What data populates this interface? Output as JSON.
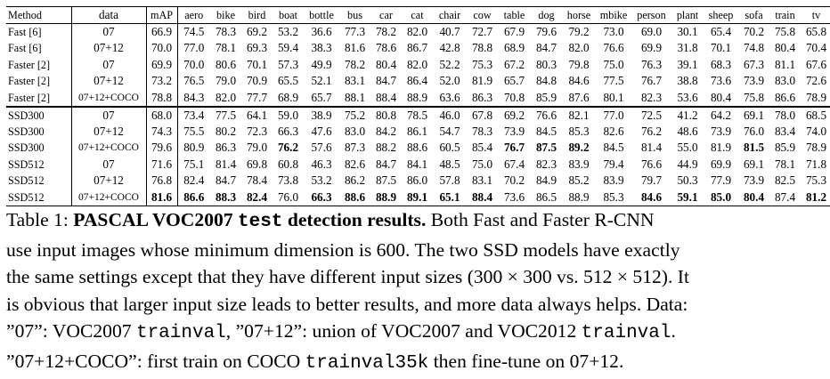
{
  "table": {
    "headers": [
      "Method",
      "data",
      "mAP",
      "aero",
      "bike",
      "bird",
      "boat",
      "bottle",
      "bus",
      "car",
      "cat",
      "chair",
      "cow",
      "table",
      "dog",
      "horse",
      "mbike",
      "person",
      "plant",
      "sheep",
      "sofa",
      "train",
      "tv"
    ],
    "rows": [
      {
        "method": "Fast [6]",
        "data": "07",
        "values": [
          "66.9",
          "74.5",
          "78.3",
          "69.2",
          "53.2",
          "36.6",
          "77.3",
          "78.2",
          "82.0",
          "40.7",
          "72.7",
          "67.9",
          "79.6",
          "79.2",
          "73.0",
          "69.0",
          "30.1",
          "65.4",
          "70.2",
          "75.8",
          "65.8"
        ],
        "bold": []
      },
      {
        "method": "Fast [6]",
        "data": "07+12",
        "values": [
          "70.0",
          "77.0",
          "78.1",
          "69.3",
          "59.4",
          "38.3",
          "81.6",
          "78.6",
          "86.7",
          "42.8",
          "78.8",
          "68.9",
          "84.7",
          "82.0",
          "76.6",
          "69.9",
          "31.8",
          "70.1",
          "74.8",
          "80.4",
          "70.4"
        ],
        "bold": []
      },
      {
        "method": "Faster [2]",
        "data": "07",
        "values": [
          "69.9",
          "70.0",
          "80.6",
          "70.1",
          "57.3",
          "49.9",
          "78.2",
          "80.4",
          "82.0",
          "52.2",
          "75.3",
          "67.2",
          "80.3",
          "79.8",
          "75.0",
          "76.3",
          "39.1",
          "68.3",
          "67.3",
          "81.1",
          "67.6"
        ],
        "bold": []
      },
      {
        "method": "Faster [2]",
        "data": "07+12",
        "values": [
          "73.2",
          "76.5",
          "79.0",
          "70.9",
          "65.5",
          "52.1",
          "83.1",
          "84.7",
          "86.4",
          "52.0",
          "81.9",
          "65.7",
          "84.8",
          "84.6",
          "77.5",
          "76.7",
          "38.8",
          "73.6",
          "73.9",
          "83.0",
          "72.6"
        ],
        "bold": []
      },
      {
        "method": "Faster [2]",
        "data": "07+12+COCO",
        "values": [
          "78.8",
          "84.3",
          "82.0",
          "77.7",
          "68.9",
          "65.7",
          "88.1",
          "88.4",
          "88.9",
          "63.6",
          "86.3",
          "70.8",
          "85.9",
          "87.6",
          "80.1",
          "82.3",
          "53.6",
          "80.4",
          "75.8",
          "86.6",
          "78.9"
        ],
        "bold": []
      },
      {
        "method": "SSD300",
        "data": "07",
        "values": [
          "68.0",
          "73.4",
          "77.5",
          "64.1",
          "59.0",
          "38.9",
          "75.2",
          "80.8",
          "78.5",
          "46.0",
          "67.8",
          "69.2",
          "76.6",
          "82.1",
          "77.0",
          "72.5",
          "41.2",
          "64.2",
          "69.1",
          "78.0",
          "68.5"
        ],
        "bold": [],
        "group_start": true
      },
      {
        "method": "SSD300",
        "data": "07+12",
        "values": [
          "74.3",
          "75.5",
          "80.2",
          "72.3",
          "66.3",
          "47.6",
          "83.0",
          "84.2",
          "86.1",
          "54.7",
          "78.3",
          "73.9",
          "84.5",
          "85.3",
          "82.6",
          "76.2",
          "48.6",
          "73.9",
          "76.0",
          "83.4",
          "74.0"
        ],
        "bold": []
      },
      {
        "method": "SSD300",
        "data": "07+12+COCO",
        "values": [
          "79.6",
          "80.9",
          "86.3",
          "79.0",
          "76.2",
          "57.6",
          "87.3",
          "88.2",
          "88.6",
          "60.5",
          "85.4",
          "76.7",
          "87.5",
          "89.2",
          "84.5",
          "81.4",
          "55.0",
          "81.9",
          "81.5",
          "85.9",
          "78.9"
        ],
        "bold": [
          4,
          11,
          12,
          13,
          18
        ]
      },
      {
        "method": "SSD512",
        "data": "07",
        "values": [
          "71.6",
          "75.1",
          "81.4",
          "69.8",
          "60.8",
          "46.3",
          "82.6",
          "84.7",
          "84.1",
          "48.5",
          "75.0",
          "67.4",
          "82.3",
          "83.9",
          "79.4",
          "76.6",
          "44.9",
          "69.9",
          "69.1",
          "78.1",
          "71.8"
        ],
        "bold": []
      },
      {
        "method": "SSD512",
        "data": "07+12",
        "values": [
          "76.8",
          "82.4",
          "84.7",
          "78.4",
          "73.8",
          "53.2",
          "86.2",
          "87.5",
          "86.0",
          "57.8",
          "83.1",
          "70.2",
          "84.9",
          "85.2",
          "83.9",
          "79.7",
          "50.3",
          "77.9",
          "73.9",
          "82.5",
          "75.3"
        ],
        "bold": []
      },
      {
        "method": "SSD512",
        "data": "07+12+COCO",
        "values": [
          "81.6",
          "86.6",
          "88.3",
          "82.4",
          "76.0",
          "66.3",
          "88.6",
          "88.9",
          "89.1",
          "65.1",
          "88.4",
          "73.6",
          "86.5",
          "88.9",
          "85.3",
          "84.6",
          "59.1",
          "85.0",
          "80.4",
          "87.4",
          "81.2"
        ],
        "bold": [
          0,
          1,
          2,
          3,
          5,
          6,
          7,
          8,
          9,
          10,
          15,
          16,
          17,
          18,
          20,
          21
        ]
      }
    ]
  },
  "caption": {
    "label": "Table 1:",
    "title_a": "PASCAL VOC2007",
    "title_mono": "test",
    "title_b": "detection results.",
    "line1_rest": "Both Fast and Faster R-CNN",
    "line2": "use input images whose minimum dimension is 600. The two SSD models have exactly",
    "line3": "the same settings except that they have different input sizes (300 × 300 vs. 512 × 512). It",
    "line4": "is obvious that larger input size leads to better results, and more data always helps. Data:",
    "line5_a": "”07”: VOC2007",
    "line5_mono1": "trainval",
    "line5_b": ", ”07+12”: union of VOC2007 and VOC2012",
    "line5_mono2": "trainval",
    "line5_c": ".",
    "line6_a": "”07+12+COCO”: first train on COCO",
    "line6_mono": "trainval35k",
    "line6_b": "then fine-tune on 07+12."
  }
}
